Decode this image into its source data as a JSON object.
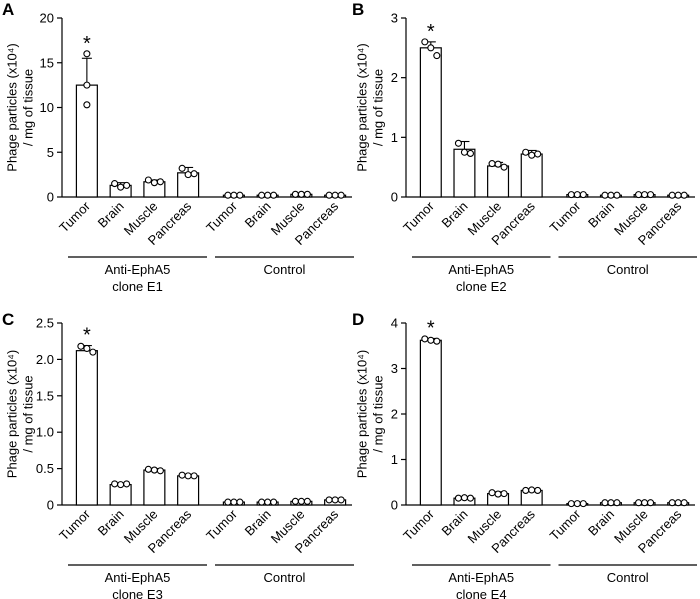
{
  "chart_data": [
    {
      "type": "bar",
      "panel_label": "A",
      "ylabel_line1": "Phage particles (x10⁴)",
      "ylabel_line2": "/ mg of tissue",
      "ylim": [
        0,
        20
      ],
      "yticks": [
        0,
        5,
        10,
        15,
        20
      ],
      "categories": [
        "Tumor",
        "Brain",
        "Muscle",
        "Pancreas",
        "Tumor",
        "Brain",
        "Muscle",
        "Pancreas"
      ],
      "values": [
        12.5,
        1.3,
        1.7,
        2.7,
        0.2,
        0.2,
        0.3,
        0.2
      ],
      "errors": [
        3.0,
        0.3,
        0.2,
        0.6,
        0.05,
        0.05,
        0.05,
        0.05
      ],
      "points": [
        [
          16.0,
          12.5,
          10.3
        ],
        [
          1.5,
          1.1,
          1.3
        ],
        [
          1.9,
          1.6,
          1.7
        ],
        [
          3.2,
          2.5,
          2.6
        ],
        [
          0.2,
          0.2,
          0.2
        ],
        [
          0.2,
          0.2,
          0.2
        ],
        [
          0.3,
          0.3,
          0.3
        ],
        [
          0.2,
          0.2,
          0.2
        ]
      ],
      "significant": [
        true,
        false,
        false,
        false,
        false,
        false,
        false,
        false
      ],
      "significance_marker": "*",
      "groups": [
        {
          "label_line1": "Anti-EphA5",
          "label_line2": "clone E1"
        },
        {
          "label_line1": "Control",
          "label_line2": ""
        }
      ]
    },
    {
      "type": "bar",
      "panel_label": "B",
      "ylabel_line1": "Phage particles (x10⁴)",
      "ylabel_line2": "/ mg of tissue",
      "ylim": [
        0,
        3
      ],
      "yticks": [
        0,
        1,
        2,
        3
      ],
      "categories": [
        "Tumor",
        "Brain",
        "Muscle",
        "Pancreas",
        "Tumor",
        "Brain",
        "Muscle",
        "Pancreas"
      ],
      "values": [
        2.5,
        0.8,
        0.52,
        0.72,
        0.04,
        0.03,
        0.04,
        0.03
      ],
      "errors": [
        0.1,
        0.13,
        0.06,
        0.06,
        0.01,
        0.01,
        0.01,
        0.01
      ],
      "points": [
        [
          2.6,
          2.5,
          2.37
        ],
        [
          0.9,
          0.75,
          0.73
        ],
        [
          0.56,
          0.55,
          0.5
        ],
        [
          0.75,
          0.7,
          0.72
        ],
        [
          0.04,
          0.04,
          0.04
        ],
        [
          0.03,
          0.03,
          0.03
        ],
        [
          0.04,
          0.04,
          0.04
        ],
        [
          0.03,
          0.03,
          0.03
        ]
      ],
      "significant": [
        true,
        false,
        false,
        false,
        false,
        false,
        false,
        false
      ],
      "significance_marker": "*",
      "groups": [
        {
          "label_line1": "Anti-EphA5",
          "label_line2": "clone E2"
        },
        {
          "label_line1": "Control",
          "label_line2": ""
        }
      ]
    },
    {
      "type": "bar",
      "panel_label": "C",
      "ylabel_line1": "Phage particles (x10⁴)",
      "ylabel_line2": "/ mg of tissue",
      "ylim": [
        0,
        2.5
      ],
      "yticks": [
        0,
        0.5,
        1.0,
        1.5,
        2.0,
        2.5
      ],
      "ytick_labels": [
        "0",
        "0.5",
        "1.0",
        "1.5",
        "2.0",
        "2.5"
      ],
      "categories": [
        "Tumor",
        "Brain",
        "Muscle",
        "Pancreas",
        "Tumor",
        "Brain",
        "Muscle",
        "Pancreas"
      ],
      "values": [
        2.12,
        0.28,
        0.48,
        0.4,
        0.04,
        0.04,
        0.05,
        0.07
      ],
      "errors": [
        0.07,
        0.02,
        0.02,
        0.02,
        0.01,
        0.01,
        0.01,
        0.01
      ],
      "points": [
        [
          2.18,
          2.15,
          2.1
        ],
        [
          0.29,
          0.28,
          0.29
        ],
        [
          0.49,
          0.48,
          0.47
        ],
        [
          0.41,
          0.4,
          0.4
        ],
        [
          0.04,
          0.04,
          0.04
        ],
        [
          0.04,
          0.04,
          0.04
        ],
        [
          0.05,
          0.05,
          0.05
        ],
        [
          0.07,
          0.07,
          0.07
        ]
      ],
      "significant": [
        true,
        false,
        false,
        false,
        false,
        false,
        false,
        false
      ],
      "significance_marker": "*",
      "groups": [
        {
          "label_line1": "Anti-EphA5",
          "label_line2": "clone E3"
        },
        {
          "label_line1": "Control",
          "label_line2": ""
        }
      ]
    },
    {
      "type": "bar",
      "panel_label": "D",
      "ylabel_line1": "Phage particles (x10⁴)",
      "ylabel_line2": "/ mg of tissue",
      "ylim": [
        0,
        4
      ],
      "yticks": [
        0,
        1,
        2,
        3,
        4
      ],
      "categories": [
        "Tumor",
        "Brain",
        "Muscle",
        "Pancreas",
        "Tumor",
        "Brain",
        "Muscle",
        "Pancreas"
      ],
      "values": [
        3.62,
        0.15,
        0.25,
        0.32,
        0.03,
        0.05,
        0.05,
        0.05
      ],
      "errors": [
        0.04,
        0.02,
        0.04,
        0.02,
        0.01,
        0.01,
        0.01,
        0.01
      ],
      "points": [
        [
          3.65,
          3.62,
          3.6
        ],
        [
          0.15,
          0.16,
          0.15
        ],
        [
          0.27,
          0.24,
          0.25
        ],
        [
          0.32,
          0.33,
          0.32
        ],
        [
          0.03,
          0.03,
          0.03
        ],
        [
          0.05,
          0.05,
          0.05
        ],
        [
          0.05,
          0.05,
          0.05
        ],
        [
          0.05,
          0.05,
          0.05
        ]
      ],
      "significant": [
        true,
        false,
        false,
        false,
        false,
        false,
        false,
        false
      ],
      "significance_marker": "*",
      "groups": [
        {
          "label_line1": "Anti-EphA5",
          "label_line2": "clone E4"
        },
        {
          "label_line1": "Control",
          "label_line2": ""
        }
      ]
    }
  ]
}
